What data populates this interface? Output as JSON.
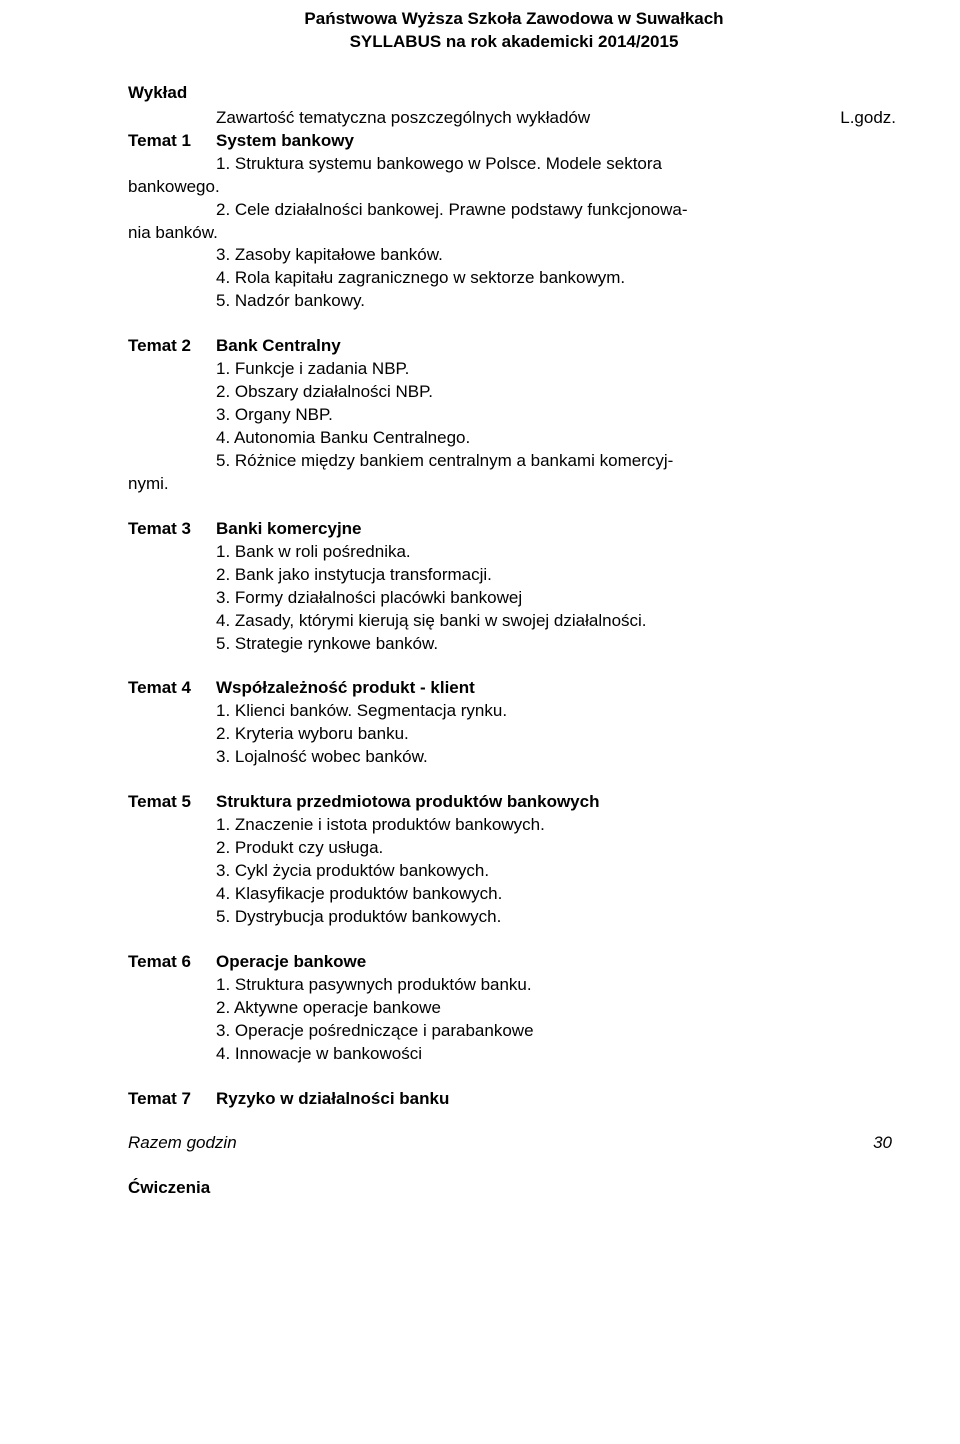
{
  "header": {
    "line1": "Państwowa Wyższa Szkoła Zawodowa w Suwałkach",
    "line2": "SYLLABUS  na rok akademicki 2014/2015"
  },
  "lecture_label": "Wykład",
  "content_header": "Zawartość tematyczna poszczególnych wykładów",
  "hours_header": "L.godz.",
  "topics": {
    "t1": {
      "num": "Temat 1",
      "title": "System bankowy",
      "items": [
        "1. Struktura systemu bankowego w Polsce. Modele sektora",
        "bankowego.",
        "2. Cele działalności bankowej. Prawne podstawy funkcjonowa-",
        "nia banków.",
        "3. Zasoby kapitałowe banków.",
        "4. Rola kapitału zagranicznego w sektorze bankowym.",
        "5. Nadzór bankowy."
      ],
      "noindent": [
        1,
        3
      ]
    },
    "t2": {
      "num": "Temat 2",
      "title": "Bank Centralny",
      "items": [
        "1. Funkcje i zadania NBP.",
        "2. Obszary działalności NBP.",
        "3. Organy NBP.",
        "4. Autonomia Banku Centralnego.",
        "5. Różnice między bankiem centralnym a bankami komercyj-",
        "nymi."
      ],
      "noindent": [
        5
      ]
    },
    "t3": {
      "num": "Temat 3",
      "title": "Banki komercyjne",
      "items": [
        "1. Bank w roli pośrednika.",
        "2. Bank jako instytucja transformacji.",
        "3. Formy działalności placówki bankowej",
        "4. Zasady, którymi kierują się banki w swojej działalności.",
        "5. Strategie rynkowe banków."
      ],
      "noindent": []
    },
    "t4": {
      "num": "Temat 4",
      "title": "Współzależność produkt - klient",
      "items": [
        "1. Klienci banków. Segmentacja rynku.",
        "2. Kryteria wyboru banku.",
        "3. Lojalność wobec banków."
      ],
      "noindent": []
    },
    "t5": {
      "num": "Temat 5",
      "title": "Struktura przedmiotowa produktów bankowych",
      "items": [
        "1. Znaczenie i istota produktów bankowych.",
        "2. Produkt czy usługa.",
        "3. Cykl życia produktów bankowych.",
        "4. Klasyfikacje produktów bankowych.",
        "5. Dystrybucja produktów bankowych."
      ],
      "noindent": []
    },
    "t6": {
      "num": "Temat 6",
      "title": "Operacje bankowe",
      "items": [
        "1. Struktura pasywnych produktów banku.",
        "2. Aktywne operacje bankowe",
        "3. Operacje pośredniczące i parabankowe",
        "4. Innowacje w bankowości"
      ],
      "noindent": []
    },
    "t7": {
      "num": "Temat 7",
      "title": "Ryzyko w działalności banku",
      "items": [],
      "noindent": []
    }
  },
  "razem": {
    "label": "Razem godzin",
    "value": "30"
  },
  "cwiczenia": "Ćwiczenia"
}
